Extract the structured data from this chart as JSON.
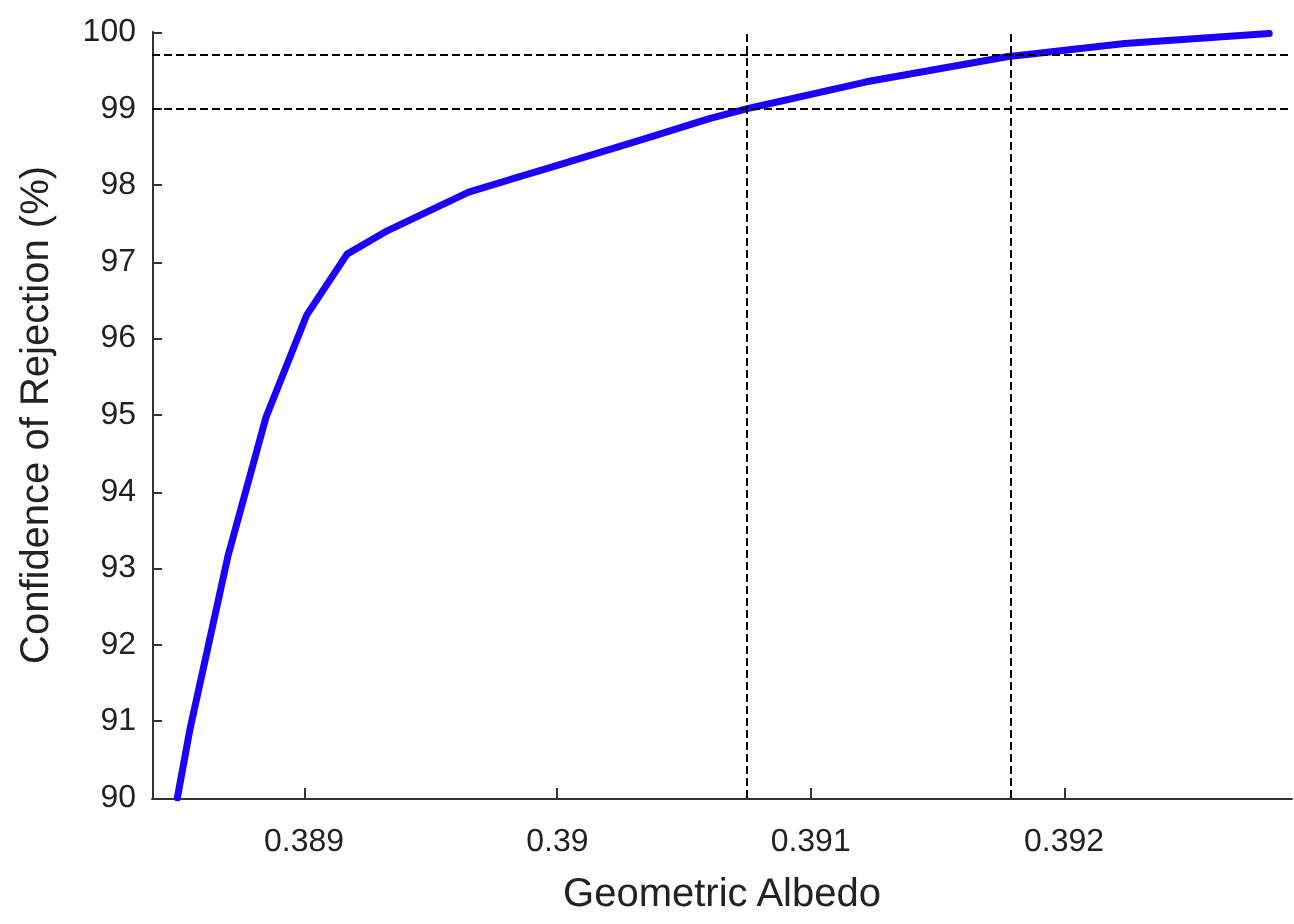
{
  "chart_data": {
    "type": "line",
    "xlabel": "Geometric Albedo",
    "ylabel": "Confidence of Rejection (%)",
    "x": [
      0.3885,
      0.38855,
      0.3887,
      0.38885,
      0.38901,
      0.38917,
      0.38932,
      0.38965,
      0.39,
      0.39035,
      0.3906,
      0.39075,
      0.39122,
      0.39178,
      0.39224,
      0.39281
    ],
    "series": [
      {
        "color": "#1a00ff",
        "values": [
          90,
          90.9,
          93.16,
          94.97,
          96.3,
          97.1,
          97.39,
          97.91,
          98.26,
          98.61,
          98.87,
          99.0,
          99.35,
          99.68,
          99.85,
          99.98
        ]
      }
    ],
    "xlim": [
      0.3884,
      0.3929
    ],
    "xticks": [
      0.389,
      0.39,
      0.391,
      0.392
    ],
    "ylim": [
      90,
      100
    ],
    "yticks": [
      90,
      91,
      92,
      93,
      94,
      95,
      96,
      97,
      98,
      99,
      100
    ],
    "ref_lines": [
      {
        "axis": "x",
        "value": 0.39075,
        "color": "#000000",
        "line_style": "dashed"
      },
      {
        "axis": "x",
        "value": 0.39179,
        "color": "#000000",
        "line_style": "dashed"
      },
      {
        "axis": "y",
        "value": 99,
        "color": "#000000",
        "line_style": "dashed"
      },
      {
        "axis": "y",
        "value": 99.7,
        "color": "#000000",
        "line_style": "dashed"
      }
    ],
    "grid": false,
    "marker": "none",
    "line_style": "solid"
  }
}
